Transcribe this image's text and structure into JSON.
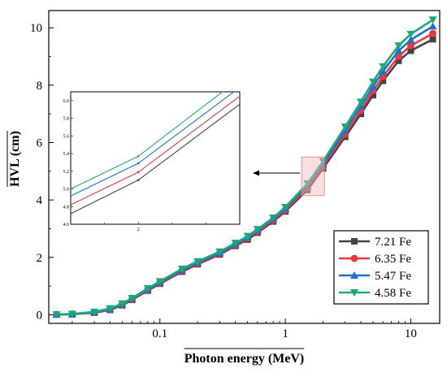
{
  "chart_data": {
    "type": "line",
    "title": "",
    "xlabel": "Photon energy (MeV)",
    "ylabel": "HVL (cm)",
    "xscale": "log",
    "xlim": [
      0.013,
      17
    ],
    "ylim": [
      -0.3,
      10.6
    ],
    "x_ticks": [
      {
        "value": 0.1,
        "label": "0.1"
      },
      {
        "value": 1,
        "label": "1"
      },
      {
        "value": 10,
        "label": "10"
      }
    ],
    "y_ticks": [
      {
        "value": 0,
        "label": "0"
      },
      {
        "value": 2,
        "label": "2"
      },
      {
        "value": 4,
        "label": "4"
      },
      {
        "value": 6,
        "label": "6"
      },
      {
        "value": 8,
        "label": "8"
      },
      {
        "value": 10,
        "label": "10"
      }
    ],
    "grid": false,
    "legend": "bottom-right",
    "x": [
      0.015,
      0.02,
      0.03,
      0.04,
      0.05,
      0.06,
      0.08,
      0.1,
      0.15,
      0.2,
      0.3,
      0.4,
      0.5,
      0.6,
      0.8,
      1,
      1.5,
      2,
      3,
      4,
      5,
      6,
      8,
      10,
      15
    ],
    "series": [
      {
        "name": "7.21 Fe",
        "color": "#444444",
        "marker": "square",
        "values": [
          0.01,
          0.02,
          0.07,
          0.17,
          0.33,
          0.52,
          0.84,
          1.08,
          1.5,
          1.76,
          2.1,
          2.4,
          2.62,
          2.86,
          3.25,
          3.6,
          4.35,
          5.1,
          6.2,
          7.0,
          7.65,
          8.15,
          8.85,
          9.2,
          9.6
        ]
      },
      {
        "name": "6.35 Fe",
        "color": "#e8383d",
        "marker": "circle",
        "values": [
          0.01,
          0.02,
          0.08,
          0.18,
          0.35,
          0.54,
          0.86,
          1.1,
          1.53,
          1.79,
          2.13,
          2.43,
          2.66,
          2.9,
          3.29,
          3.65,
          4.42,
          5.18,
          6.3,
          7.12,
          7.8,
          8.3,
          9.0,
          9.38,
          9.8
        ]
      },
      {
        "name": "5.47 Fe",
        "color": "#1f6fd1",
        "marker": "triangle-up",
        "values": [
          0.01,
          0.02,
          0.09,
          0.2,
          0.37,
          0.56,
          0.89,
          1.13,
          1.56,
          1.82,
          2.16,
          2.46,
          2.7,
          2.94,
          3.34,
          3.7,
          4.5,
          5.25,
          6.42,
          7.27,
          7.95,
          8.48,
          9.2,
          9.58,
          10.05
        ]
      },
      {
        "name": "4.58 Fe",
        "color": "#1aaa78",
        "marker": "triangle-down",
        "values": [
          0.01,
          0.03,
          0.1,
          0.22,
          0.39,
          0.58,
          0.92,
          1.16,
          1.6,
          1.86,
          2.2,
          2.5,
          2.74,
          2.98,
          3.38,
          3.75,
          4.57,
          5.35,
          6.55,
          7.42,
          8.12,
          8.65,
          9.38,
          9.78,
          10.28
        ]
      }
    ],
    "inset": {
      "source_box": {
        "xlim": [
          1.35,
          2.05
        ],
        "ylim": [
          4.15,
          5.5
        ]
      },
      "xlim": [
        1.8,
        2.3
      ],
      "ylim": [
        4.6,
        6.1
      ],
      "x_ticks": [
        {
          "value": 2,
          "label": "2"
        }
      ],
      "y_ticks": [
        {
          "value": 4.6,
          "label": "4.6"
        },
        {
          "value": 4.8,
          "label": "4.8"
        },
        {
          "value": 5.0,
          "label": "5.0"
        },
        {
          "value": 5.2,
          "label": "5.2"
        },
        {
          "value": 5.4,
          "label": "5.4"
        },
        {
          "value": 5.6,
          "label": "5.6"
        },
        {
          "value": 5.8,
          "label": "5.8"
        },
        {
          "value": 6.0,
          "label": "6.0"
        }
      ],
      "series": [
        {
          "name": "7.21 Fe",
          "color": "#444444",
          "x": [
            1.8,
            2.0,
            2.3
          ],
          "values": [
            4.72,
            5.1,
            5.96
          ]
        },
        {
          "name": "6.35 Fe",
          "color": "#e8383d",
          "x": [
            1.8,
            2.0,
            2.3
          ],
          "values": [
            4.82,
            5.19,
            6.05
          ]
        },
        {
          "name": "5.47 Fe",
          "color": "#1f6fd1",
          "x": [
            1.8,
            2.0,
            2.3
          ],
          "values": [
            4.92,
            5.29,
            6.15
          ]
        },
        {
          "name": "4.58 Fe",
          "color": "#1aaa78",
          "x": [
            1.8,
            2.0,
            2.3
          ],
          "values": [
            5.0,
            5.37,
            6.25
          ]
        }
      ]
    }
  }
}
